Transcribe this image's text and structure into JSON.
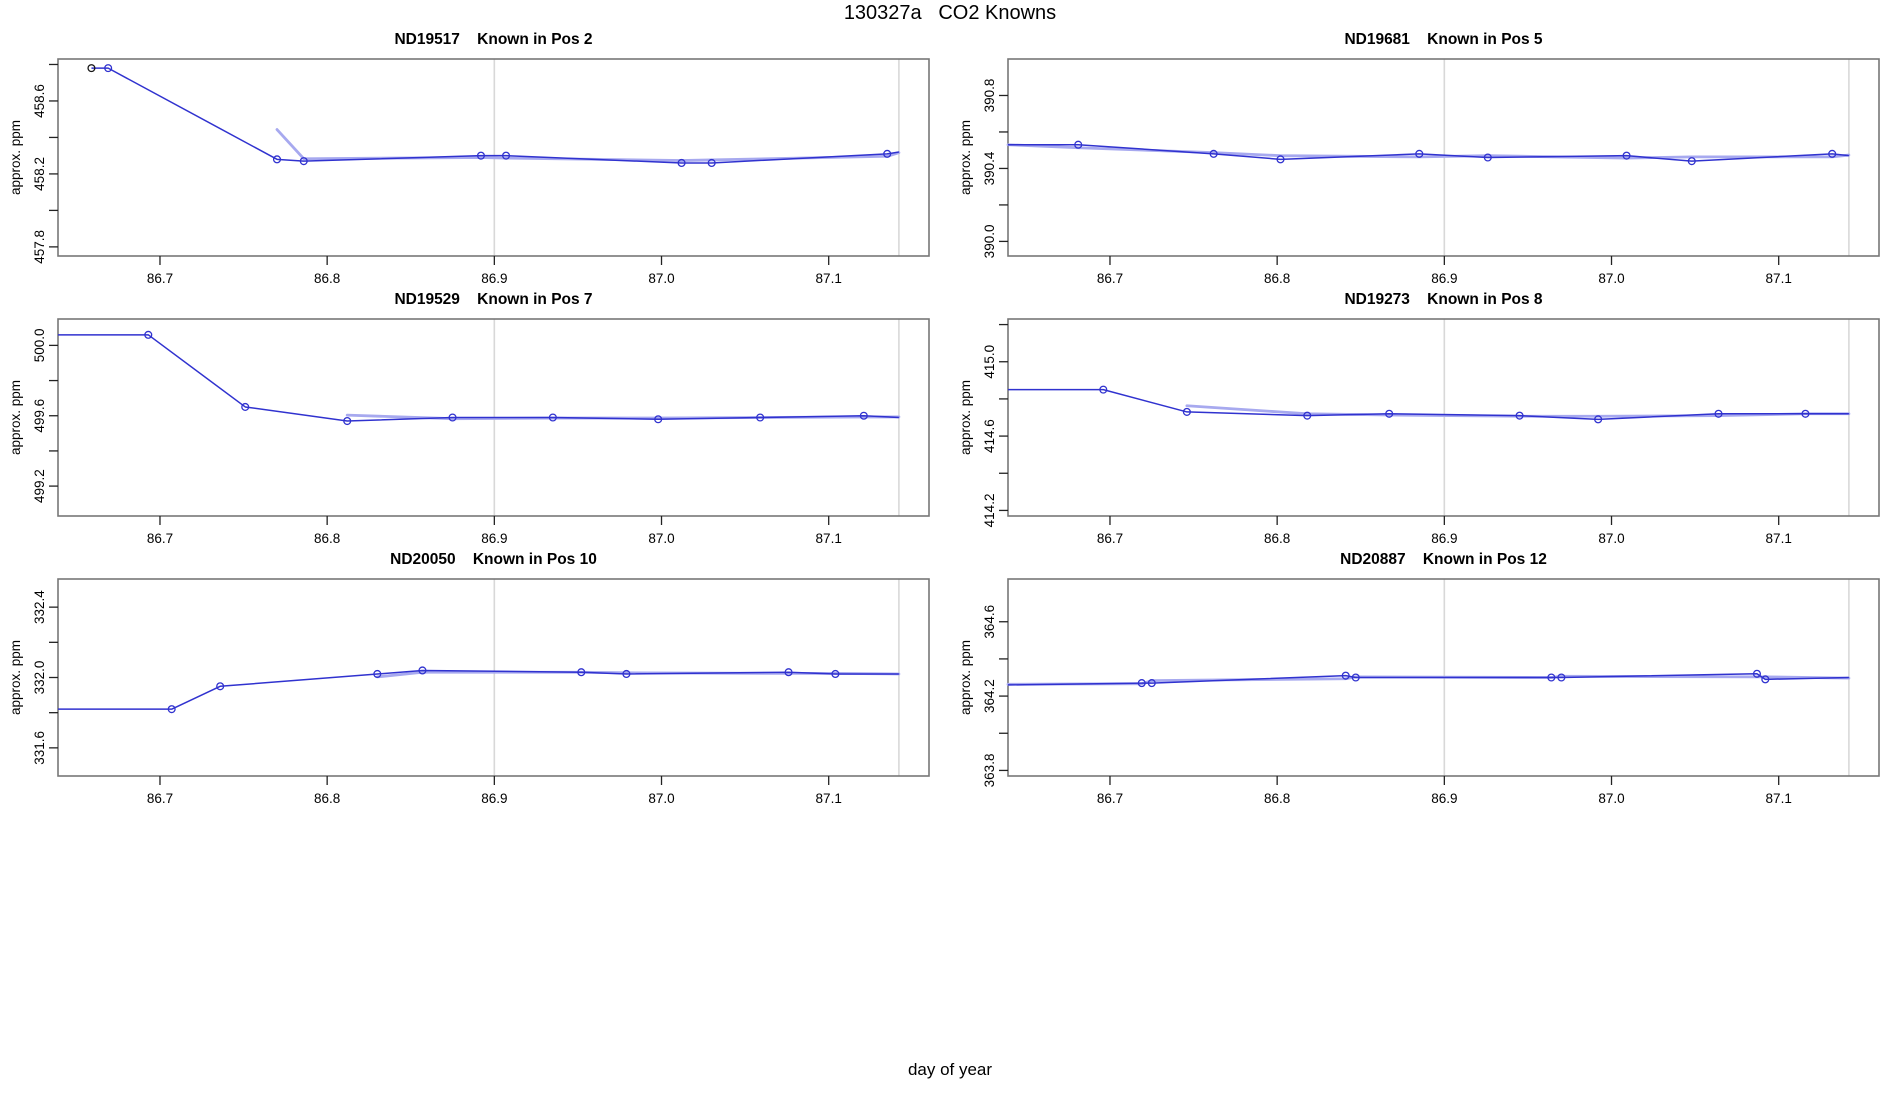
{
  "title": "130327a   CO2 Knowns",
  "xlabel": "day of year",
  "colors": {
    "line": "#3032cf",
    "smooth": "#a7a9ef",
    "grid": "#d8d8d8",
    "frame": "#777777",
    "tick": "#222222",
    "text": "#000000",
    "first_point": "#151515"
  },
  "chart_data": [
    {
      "type": "line",
      "title": "ND19517    Known in Pos 2",
      "ylabel": "approx. ppm",
      "xlim": [
        86.639,
        87.16
      ],
      "ylim": [
        457.75,
        458.83
      ],
      "xticks": [
        86.7,
        86.8,
        86.9,
        87.0,
        87.1
      ],
      "xtick_labels": [
        "86.7",
        "86.8",
        "86.9",
        "87.0",
        "87.1"
      ],
      "yticks": [
        457.8,
        458.0,
        458.2,
        458.4,
        458.6,
        458.8
      ],
      "ytick_labels": [
        "457.8",
        "",
        "458.2",
        "",
        "458.6",
        ""
      ],
      "vlines": [
        86.9,
        87.142
      ],
      "line": [
        [
          86.659,
          458.78
        ],
        [
          86.669,
          458.78
        ],
        [
          86.77,
          458.28
        ],
        [
          86.786,
          458.27
        ],
        [
          86.892,
          458.3
        ],
        [
          86.907,
          458.3
        ],
        [
          87.012,
          458.26
        ],
        [
          87.03,
          458.26
        ],
        [
          87.135,
          458.31
        ],
        [
          87.142,
          458.32
        ]
      ],
      "points_range": [
        0,
        9
      ],
      "black_first": true,
      "smooth_from": 2
    },
    {
      "type": "line",
      "title": "ND19681    Known in Pos 5",
      "ylabel": "approx. ppm",
      "xlim": [
        86.639,
        87.16
      ],
      "ylim": [
        389.92,
        391.0
      ],
      "xticks": [
        86.7,
        86.8,
        86.9,
        87.0,
        87.1
      ],
      "xtick_labels": [
        "86.7",
        "86.8",
        "86.9",
        "87.0",
        "87.1"
      ],
      "yticks": [
        390.0,
        390.2,
        390.4,
        390.6,
        390.8
      ],
      "ytick_labels": [
        "390.0",
        "",
        "390.4",
        "",
        "390.8"
      ],
      "vlines": [
        86.9,
        87.142
      ],
      "line": [
        [
          86.639,
          390.53
        ],
        [
          86.681,
          390.53
        ],
        [
          86.762,
          390.48
        ],
        [
          86.802,
          390.45
        ],
        [
          86.885,
          390.48
        ],
        [
          86.926,
          390.46
        ],
        [
          87.009,
          390.47
        ],
        [
          87.048,
          390.44
        ],
        [
          87.132,
          390.48
        ],
        [
          87.142,
          390.47
        ]
      ],
      "points_range": [
        1,
        9
      ],
      "black_first": false,
      "smooth_from": 0
    },
    {
      "type": "line",
      "title": "ND19529    Known in Pos 7",
      "ylabel": "approx. ppm",
      "xlim": [
        86.639,
        87.16
      ],
      "ylim": [
        499.03,
        500.15
      ],
      "xticks": [
        86.7,
        86.8,
        86.9,
        87.0,
        87.1
      ],
      "xtick_labels": [
        "86.7",
        "86.8",
        "86.9",
        "87.0",
        "87.1"
      ],
      "yticks": [
        499.2,
        499.4,
        499.6,
        499.8,
        500.0
      ],
      "ytick_labels": [
        "499.2",
        "",
        "499.6",
        "",
        "500.0"
      ],
      "vlines": [
        86.9,
        87.142
      ],
      "line": [
        [
          86.639,
          500.06
        ],
        [
          86.693,
          500.06
        ],
        [
          86.751,
          499.65
        ],
        [
          86.812,
          499.57
        ],
        [
          86.875,
          499.59
        ],
        [
          86.935,
          499.59
        ],
        [
          86.998,
          499.58
        ],
        [
          87.059,
          499.59
        ],
        [
          87.121,
          499.6
        ],
        [
          87.142,
          499.59
        ]
      ],
      "points_range": [
        1,
        9
      ],
      "black_first": false,
      "smooth_from": 3
    },
    {
      "type": "line",
      "title": "ND19273    Known in Pos 8",
      "ylabel": "approx. ppm",
      "xlim": [
        86.639,
        87.16
      ],
      "ylim": [
        414.17,
        415.23
      ],
      "xticks": [
        86.7,
        86.8,
        86.9,
        87.0,
        87.1
      ],
      "xtick_labels": [
        "86.7",
        "86.8",
        "86.9",
        "87.0",
        "87.1"
      ],
      "yticks": [
        414.2,
        414.4,
        414.6,
        414.8,
        415.0,
        415.2
      ],
      "ytick_labels": [
        "414.2",
        "",
        "414.6",
        "",
        "415.0",
        ""
      ],
      "vlines": [
        86.9,
        87.142
      ],
      "line": [
        [
          86.639,
          414.85
        ],
        [
          86.696,
          414.85
        ],
        [
          86.746,
          414.73
        ],
        [
          86.818,
          414.71
        ],
        [
          86.867,
          414.72
        ],
        [
          86.945,
          414.71
        ],
        [
          86.992,
          414.69
        ],
        [
          87.064,
          414.72
        ],
        [
          87.116,
          414.72
        ],
        [
          87.142,
          414.72
        ]
      ],
      "points_range": [
        1,
        9
      ],
      "black_first": false,
      "smooth_from": 2
    },
    {
      "type": "line",
      "title": "ND20050    Known in Pos 10",
      "ylabel": "approx. ppm",
      "xlim": [
        86.639,
        87.16
      ],
      "ylim": [
        331.44,
        332.56
      ],
      "xticks": [
        86.7,
        86.8,
        86.9,
        87.0,
        87.1
      ],
      "xtick_labels": [
        "86.7",
        "86.8",
        "86.9",
        "87.0",
        "87.1"
      ],
      "yticks": [
        331.6,
        331.8,
        332.0,
        332.2,
        332.4
      ],
      "ytick_labels": [
        "331.6",
        "",
        "332.0",
        "",
        "332.4"
      ],
      "vlines": [
        86.9,
        87.142
      ],
      "line": [
        [
          86.639,
          331.82
        ],
        [
          86.707,
          331.82
        ],
        [
          86.736,
          331.95
        ],
        [
          86.83,
          332.02
        ],
        [
          86.857,
          332.04
        ],
        [
          86.952,
          332.03
        ],
        [
          86.979,
          332.02
        ],
        [
          87.076,
          332.03
        ],
        [
          87.104,
          332.02
        ],
        [
          87.142,
          332.02
        ]
      ],
      "points_range": [
        1,
        9
      ],
      "black_first": false,
      "smooth_from": 3
    },
    {
      "type": "line",
      "title": "ND20887    Known in Pos 12",
      "ylabel": "approx. ppm",
      "xlim": [
        86.639,
        87.16
      ],
      "ylim": [
        363.77,
        364.83
      ],
      "xticks": [
        86.7,
        86.8,
        86.9,
        87.0,
        87.1
      ],
      "xtick_labels": [
        "86.7",
        "86.8",
        "86.9",
        "87.0",
        "87.1"
      ],
      "yticks": [
        363.8,
        364.0,
        364.2,
        364.4,
        364.6
      ],
      "ytick_labels": [
        "363.8",
        "",
        "364.2",
        "",
        "364.6"
      ],
      "vlines": [
        86.9,
        87.142
      ],
      "line": [
        [
          86.639,
          364.26
        ],
        [
          86.719,
          364.27
        ],
        [
          86.725,
          364.27
        ],
        [
          86.841,
          364.31
        ],
        [
          86.847,
          364.3
        ],
        [
          86.964,
          364.3
        ],
        [
          86.97,
          364.3
        ],
        [
          87.087,
          364.32
        ],
        [
          87.092,
          364.29
        ],
        [
          87.142,
          364.3
        ]
      ],
      "points_range": [
        1,
        9
      ],
      "black_first": false,
      "smooth_from": 0
    }
  ]
}
